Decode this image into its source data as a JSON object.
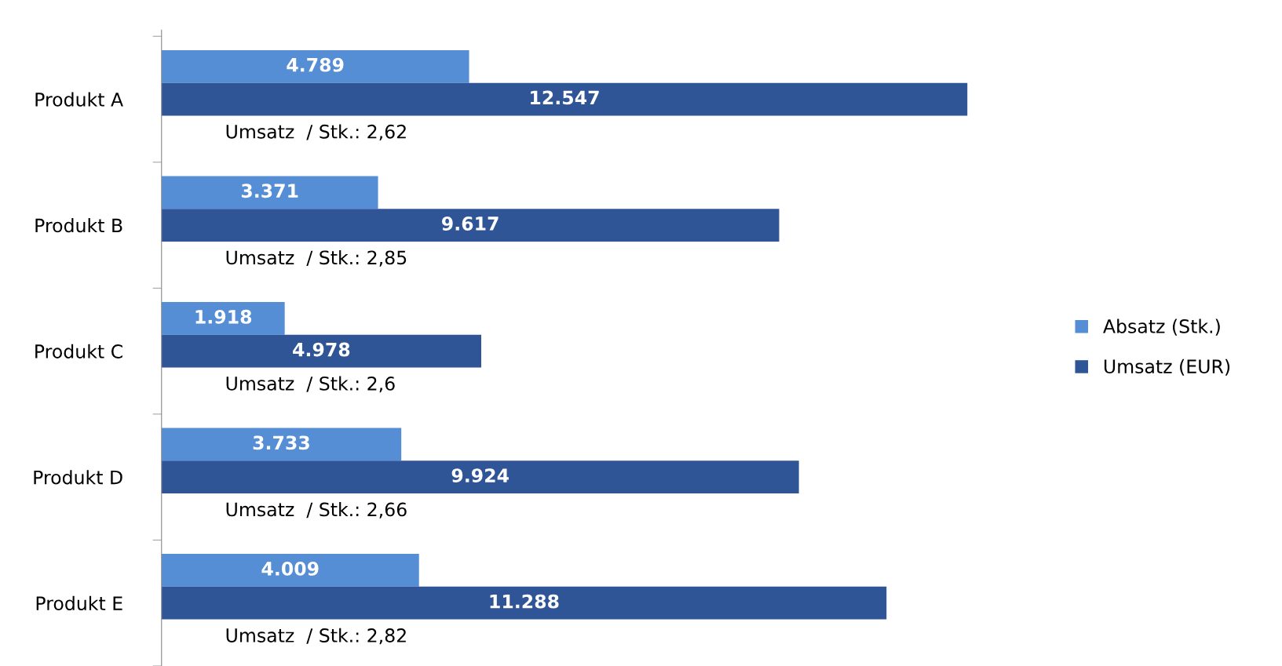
{
  "chart_data": {
    "type": "bar",
    "orientation": "horizontal",
    "categories": [
      "Produkt A",
      "Produkt B",
      "Produkt C",
      "Produkt D",
      "Produkt E"
    ],
    "series": [
      {
        "name": "Absatz (Stk.)",
        "color": "#558ed5",
        "values": [
          4789,
          3371,
          1918,
          3733,
          4009
        ],
        "value_labels": [
          "4.789",
          "3.371",
          "1.918",
          "3.733",
          "4.009"
        ]
      },
      {
        "name": "Umsatz (EUR)",
        "color": "#2f5597",
        "values": [
          12547,
          9617,
          4978,
          9924,
          11288
        ],
        "value_labels": [
          "12.547",
          "9.617",
          "4.978",
          "9.924",
          "11.288"
        ]
      }
    ],
    "annotations": [
      "Umsatz  / Stk.: 2,62",
      "Umsatz  / Stk.: 2,85",
      "Umsatz  / Stk.: 2,6",
      "Umsatz  / Stk.: 2,66",
      "Umsatz  / Stk.: 2,82"
    ],
    "legend": "right",
    "grid": false
  }
}
